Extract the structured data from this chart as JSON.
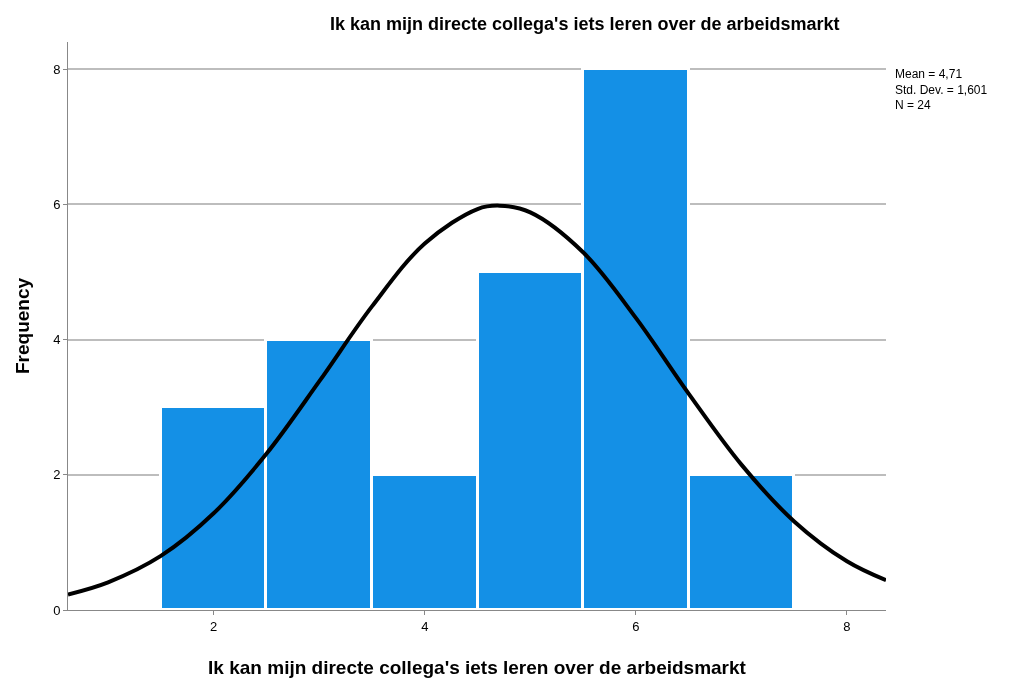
{
  "chart_data": {
    "type": "histogram",
    "title": "Ik kan mijn directe collega's iets leren over de arbeidsmarkt",
    "xlabel": "Ik kan mijn directe collega's iets leren over de arbeidsmarkt",
    "ylabel": "Frequency",
    "bins": [
      1.5,
      2.5,
      3.5,
      4.5,
      5.5,
      6.5,
      7.5
    ],
    "values": [
      3,
      4,
      2,
      5,
      8,
      2
    ],
    "color": "#1490e6",
    "series": [
      {
        "type": "line",
        "color": "#000000",
        "x": [
          0.62,
          1,
          1.5,
          2,
          2.5,
          3,
          3.5,
          4,
          4.5,
          4.71,
          5,
          5.5,
          6,
          6.5,
          7,
          7.5,
          8,
          8.37
        ],
        "values": [
          0.23,
          0.41,
          0.8,
          1.43,
          2.31,
          3.38,
          4.49,
          5.42,
          5.93,
          5.98,
          5.88,
          5.29,
          4.32,
          3.2,
          2.15,
          1.31,
          0.72,
          0.44
        ]
      }
    ],
    "annotations": [
      "Mean = 4,71\nStd. Dev. = 1,601\nN = 24"
    ],
    "xlim": [
      0.62,
      8.37
    ],
    "xticks": [
      2,
      4,
      6,
      8
    ],
    "ylim": [
      0,
      8.4
    ],
    "yticks": [
      0,
      2,
      4,
      6,
      8
    ],
    "grid": "y"
  }
}
